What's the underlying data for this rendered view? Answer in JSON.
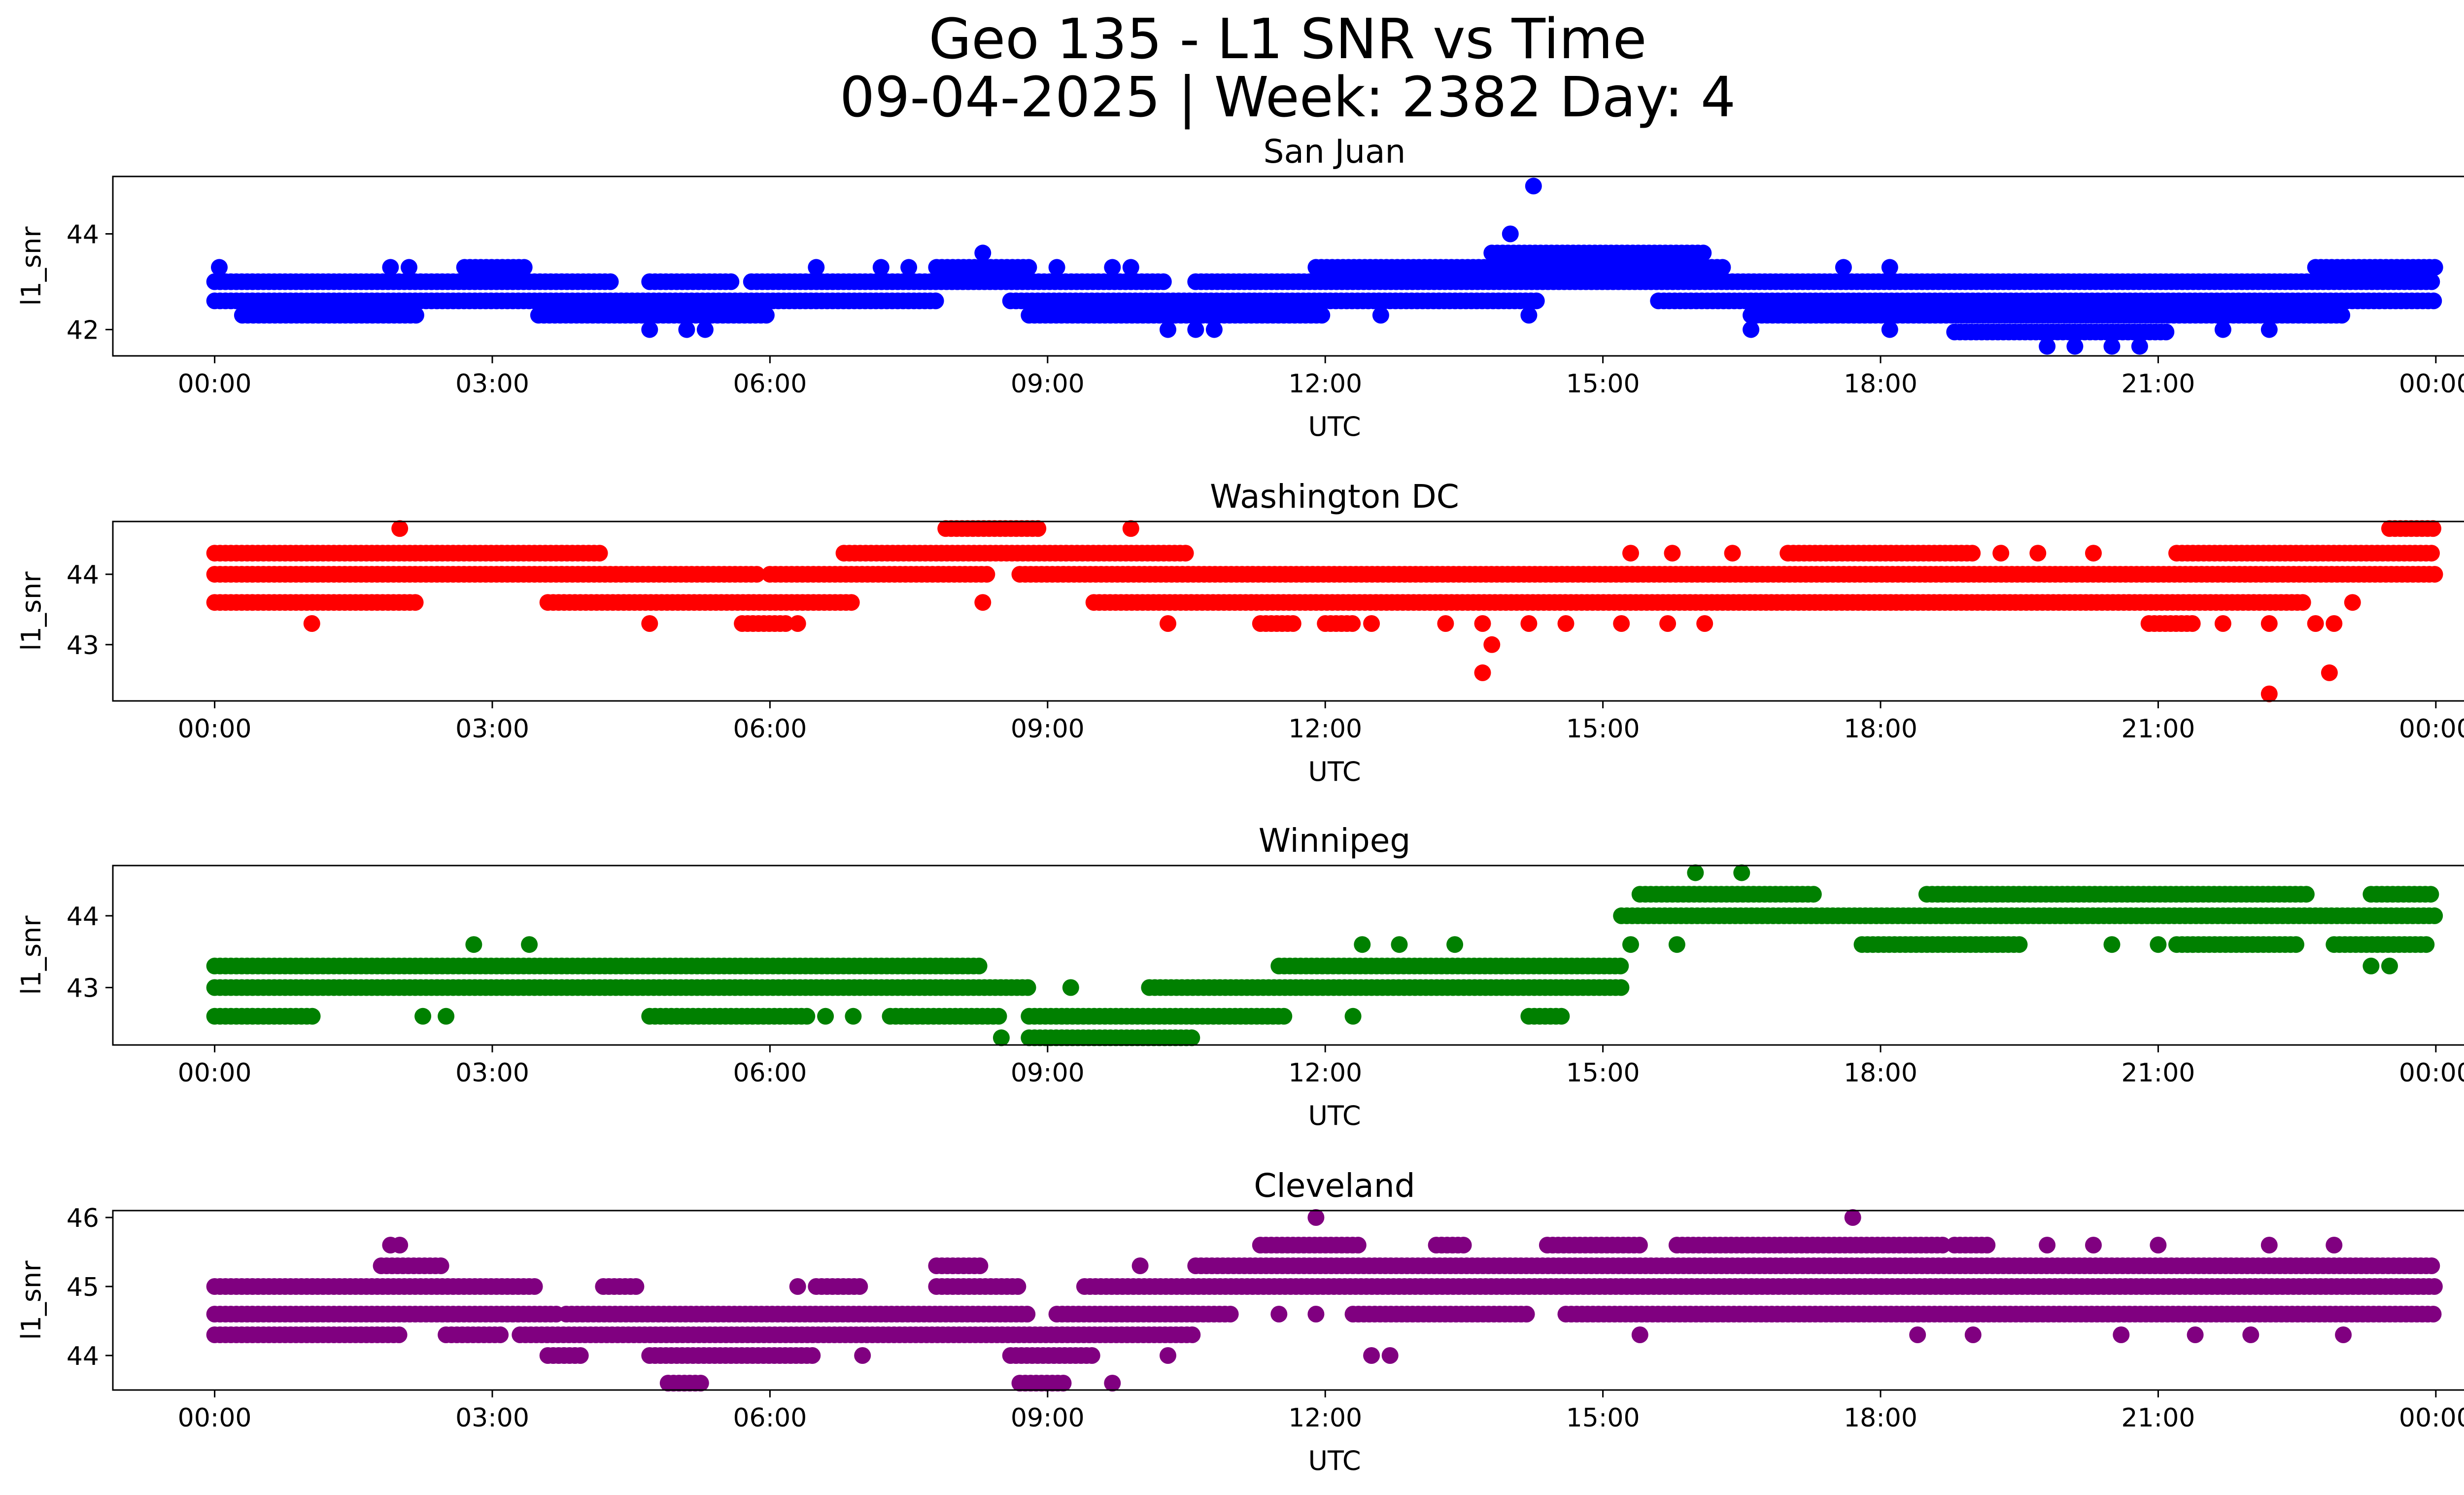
{
  "figure": {
    "title_line1": "Geo 135 - L1 SNR vs Time",
    "title_line2": "09-04-2025 | Week: 2382 Day: 4"
  },
  "chart_data": [
    {
      "type": "scatter",
      "title": "San Juan",
      "xlabel": "UTC",
      "ylabel": "l1_snr",
      "color": "#0000ff",
      "xlim_hours": [
        -1.1,
        25.3
      ],
      "ylim": [
        41.45,
        45.2
      ],
      "xticks": [
        "00:00",
        "03:00",
        "06:00",
        "09:00",
        "12:00",
        "15:00",
        "18:00",
        "21:00",
        "00:00"
      ],
      "yticks": [
        42,
        44
      ],
      "bands": [
        {
          "y": 43.0,
          "segments": [
            [
              0.0,
              4.3
            ],
            [
              4.7,
              5.6
            ],
            [
              5.8,
              10.3
            ],
            [
              10.6,
              24.0
            ]
          ]
        },
        {
          "y": 42.6,
          "segments": [
            [
              0.0,
              7.8
            ],
            [
              8.6,
              14.3
            ],
            [
              15.6,
              24.0
            ]
          ]
        },
        {
          "y": 42.3,
          "segments": [
            [
              0.3,
              2.2
            ],
            [
              3.5,
              6.0
            ],
            [
              8.8,
              12.0
            ],
            [
              16.6,
              23.0
            ]
          ]
        },
        {
          "y": 43.3,
          "segments": [
            [
              2.7,
              3.4
            ],
            [
              7.8,
              8.8
            ],
            [
              11.9,
              16.3
            ],
            [
              22.7,
              24.0
            ]
          ]
        },
        {
          "y": 43.6,
          "segments": [
            [
              13.8,
              16.1
            ]
          ]
        },
        {
          "y": 41.95,
          "segments": [
            [
              18.8,
              21.1
            ]
          ]
        }
      ],
      "points": [
        {
          "x": 0.05,
          "y": 43.3
        },
        {
          "x": 1.9,
          "y": 43.3
        },
        {
          "x": 2.1,
          "y": 43.3
        },
        {
          "x": 6.5,
          "y": 43.3
        },
        {
          "x": 7.2,
          "y": 43.3
        },
        {
          "x": 7.5,
          "y": 43.3
        },
        {
          "x": 9.1,
          "y": 43.3
        },
        {
          "x": 9.7,
          "y": 43.3
        },
        {
          "x": 9.9,
          "y": 43.3
        },
        {
          "x": 17.6,
          "y": 43.3
        },
        {
          "x": 18.1,
          "y": 43.3
        },
        {
          "x": 8.3,
          "y": 43.6
        },
        {
          "x": 14.0,
          "y": 44.0
        },
        {
          "x": 14.25,
          "y": 45.0
        },
        {
          "x": 4.7,
          "y": 42.0
        },
        {
          "x": 5.1,
          "y": 42.0
        },
        {
          "x": 5.3,
          "y": 42.0
        },
        {
          "x": 10.3,
          "y": 42.0
        },
        {
          "x": 10.6,
          "y": 42.0
        },
        {
          "x": 10.8,
          "y": 42.0
        },
        {
          "x": 16.6,
          "y": 42.0
        },
        {
          "x": 18.1,
          "y": 42.0
        },
        {
          "x": 21.7,
          "y": 42.0
        },
        {
          "x": 22.2,
          "y": 42.0
        },
        {
          "x": 19.8,
          "y": 41.65
        },
        {
          "x": 20.1,
          "y": 41.65
        },
        {
          "x": 20.5,
          "y": 41.65
        },
        {
          "x": 20.8,
          "y": 41.65
        },
        {
          "x": 14.2,
          "y": 42.3
        },
        {
          "x": 12.6,
          "y": 42.3
        }
      ]
    },
    {
      "type": "scatter",
      "title": "Washington DC",
      "xlabel": "UTC",
      "ylabel": "l1_snr",
      "color": "#ff0000",
      "xlim_hours": [
        -1.1,
        25.3
      ],
      "ylim": [
        42.2,
        44.75
      ],
      "xticks": [
        "00:00",
        "03:00",
        "06:00",
        "09:00",
        "12:00",
        "15:00",
        "18:00",
        "21:00",
        "00:00"
      ],
      "yticks": [
        43,
        44
      ],
      "bands": [
        {
          "y": 44.3,
          "segments": [
            [
              0.0,
              4.2
            ],
            [
              6.8,
              10.5
            ],
            [
              17.0,
              19.0
            ],
            [
              21.2,
              24.0
            ]
          ]
        },
        {
          "y": 44.0,
          "segments": [
            [
              0.0,
              5.9
            ],
            [
              6.0,
              8.4
            ],
            [
              8.7,
              24.0
            ]
          ]
        },
        {
          "y": 43.6,
          "segments": [
            [
              0.0,
              2.2
            ],
            [
              3.6,
              6.9
            ],
            [
              9.5,
              22.6
            ]
          ]
        },
        {
          "y": 43.3,
          "segments": [
            [
              5.7,
              6.2
            ],
            [
              11.3,
              11.7
            ],
            [
              12.0,
              12.3
            ],
            [
              20.9,
              21.4
            ]
          ]
        },
        {
          "y": 44.65,
          "segments": [
            [
              7.9,
              8.9
            ],
            [
              23.5,
              24.0
            ]
          ]
        }
      ],
      "points": [
        {
          "x": 2.0,
          "y": 44.65
        },
        {
          "x": 9.9,
          "y": 44.65
        },
        {
          "x": 1.05,
          "y": 43.3
        },
        {
          "x": 4.7,
          "y": 43.3
        },
        {
          "x": 6.3,
          "y": 43.3
        },
        {
          "x": 10.3,
          "y": 43.3
        },
        {
          "x": 12.5,
          "y": 43.3
        },
        {
          "x": 13.3,
          "y": 43.3
        },
        {
          "x": 13.7,
          "y": 43.3
        },
        {
          "x": 14.2,
          "y": 43.3
        },
        {
          "x": 14.6,
          "y": 43.3
        },
        {
          "x": 15.2,
          "y": 43.3
        },
        {
          "x": 15.7,
          "y": 43.3
        },
        {
          "x": 16.1,
          "y": 43.3
        },
        {
          "x": 21.7,
          "y": 43.3
        },
        {
          "x": 22.2,
          "y": 43.3
        },
        {
          "x": 22.7,
          "y": 43.3
        },
        {
          "x": 22.9,
          "y": 43.3
        },
        {
          "x": 8.3,
          "y": 43.6
        },
        {
          "x": 23.1,
          "y": 43.6
        },
        {
          "x": 13.8,
          "y": 43.0
        },
        {
          "x": 13.7,
          "y": 42.6
        },
        {
          "x": 22.2,
          "y": 42.3
        },
        {
          "x": 22.85,
          "y": 42.6
        },
        {
          "x": 15.3,
          "y": 44.3
        },
        {
          "x": 15.75,
          "y": 44.3
        },
        {
          "x": 16.4,
          "y": 44.3
        },
        {
          "x": 19.3,
          "y": 44.3
        },
        {
          "x": 19.7,
          "y": 44.3
        },
        {
          "x": 20.3,
          "y": 44.3
        }
      ]
    },
    {
      "type": "scatter",
      "title": "Winnipeg",
      "xlabel": "UTC",
      "ylabel": "l1_snr",
      "color": "#008000",
      "xlim_hours": [
        -1.1,
        25.3
      ],
      "ylim": [
        42.2,
        44.7
      ],
      "xticks": [
        "00:00",
        "03:00",
        "06:00",
        "09:00",
        "12:00",
        "15:00",
        "18:00",
        "21:00",
        "00:00"
      ],
      "yticks": [
        43,
        44
      ],
      "bands": [
        {
          "y": 43.3,
          "segments": [
            [
              0.0,
              8.3
            ],
            [
              11.5,
              15.2
            ]
          ]
        },
        {
          "y": 43.0,
          "segments": [
            [
              0.0,
              8.8
            ],
            [
              10.1,
              15.2
            ]
          ]
        },
        {
          "y": 42.6,
          "segments": [
            [
              0.0,
              1.1
            ],
            [
              4.7,
              6.4
            ],
            [
              7.3,
              8.5
            ],
            [
              8.8,
              11.6
            ],
            [
              14.2,
              14.6
            ]
          ]
        },
        {
          "y": 42.3,
          "segments": [
            [
              8.8,
              10.6
            ]
          ]
        },
        {
          "y": 44.3,
          "segments": [
            [
              15.4,
              17.3
            ],
            [
              18.5,
              22.6
            ],
            [
              23.3,
              24.0
            ]
          ]
        },
        {
          "y": 44.0,
          "segments": [
            [
              15.2,
              24.0
            ]
          ]
        },
        {
          "y": 43.6,
          "segments": [
            [
              17.8,
              19.5
            ],
            [
              21.2,
              22.5
            ],
            [
              22.9,
              23.9
            ]
          ]
        }
      ],
      "points": [
        {
          "x": 2.8,
          "y": 43.6
        },
        {
          "x": 3.4,
          "y": 43.6
        },
        {
          "x": 12.4,
          "y": 43.6
        },
        {
          "x": 12.8,
          "y": 43.6
        },
        {
          "x": 13.4,
          "y": 43.6
        },
        {
          "x": 15.3,
          "y": 43.6
        },
        {
          "x": 15.8,
          "y": 43.6
        },
        {
          "x": 16.0,
          "y": 44.6
        },
        {
          "x": 16.5,
          "y": 44.6
        },
        {
          "x": 23.3,
          "y": 43.3
        },
        {
          "x": 23.5,
          "y": 43.3
        },
        {
          "x": 2.25,
          "y": 42.6
        },
        {
          "x": 2.5,
          "y": 42.6
        },
        {
          "x": 6.6,
          "y": 42.6
        },
        {
          "x": 6.9,
          "y": 42.6
        },
        {
          "x": 12.3,
          "y": 42.6
        },
        {
          "x": 8.5,
          "y": 42.3
        },
        {
          "x": 9.25,
          "y": 43.0
        },
        {
          "x": 21.0,
          "y": 43.6
        },
        {
          "x": 20.5,
          "y": 43.6
        }
      ]
    },
    {
      "type": "scatter",
      "title": "Cleveland",
      "xlabel": "UTC",
      "ylabel": "l1_snr",
      "color": "#800080",
      "xlim_hours": [
        -1.1,
        25.3
      ],
      "ylim": [
        43.5,
        46.1
      ],
      "xticks": [
        "00:00",
        "03:00",
        "06:00",
        "09:00",
        "12:00",
        "15:00",
        "18:00",
        "21:00",
        "00:00"
      ],
      "yticks": [
        44,
        45,
        46
      ],
      "bands": [
        {
          "y": 45.0,
          "segments": [
            [
              0.0,
              3.5
            ],
            [
              4.2,
              4.6
            ],
            [
              6.5,
              7.0
            ],
            [
              7.8,
              8.7
            ],
            [
              9.4,
              24.0
            ]
          ]
        },
        {
          "y": 44.6,
          "segments": [
            [
              0.0,
              3.7
            ],
            [
              3.8,
              8.8
            ],
            [
              9.1,
              11.0
            ],
            [
              12.3,
              14.2
            ],
            [
              14.6,
              24.0
            ]
          ]
        },
        {
          "y": 44.3,
          "segments": [
            [
              0.0,
              2.0
            ],
            [
              2.5,
              3.1
            ],
            [
              3.3,
              10.6
            ]
          ]
        },
        {
          "y": 44.0,
          "segments": [
            [
              3.6,
              4.0
            ],
            [
              4.7,
              6.5
            ],
            [
              8.6,
              9.5
            ]
          ]
        },
        {
          "y": 43.6,
          "segments": [
            [
              4.9,
              5.3
            ],
            [
              8.7,
              9.2
            ]
          ]
        },
        {
          "y": 45.3,
          "segments": [
            [
              1.8,
              2.5
            ],
            [
              7.8,
              8.3
            ],
            [
              10.6,
              24.0
            ]
          ]
        },
        {
          "y": 45.6,
          "segments": [
            [
              11.3,
              12.4
            ],
            [
              13.2,
              13.5
            ],
            [
              14.4,
              15.4
            ],
            [
              15.8,
              18.7
            ],
            [
              18.8,
              19.2
            ]
          ]
        }
      ],
      "points": [
        {
          "x": 1.9,
          "y": 45.6
        },
        {
          "x": 2.0,
          "y": 45.6
        },
        {
          "x": 11.9,
          "y": 46.0
        },
        {
          "x": 17.7,
          "y": 46.0
        },
        {
          "x": 9.7,
          "y": 43.6
        },
        {
          "x": 10.0,
          "y": 45.3
        },
        {
          "x": 10.3,
          "y": 44.0
        },
        {
          "x": 7.0,
          "y": 44.0
        },
        {
          "x": 12.5,
          "y": 44.0
        },
        {
          "x": 12.7,
          "y": 44.0
        },
        {
          "x": 11.5,
          "y": 44.6
        },
        {
          "x": 11.9,
          "y": 44.6
        },
        {
          "x": 19.8,
          "y": 45.6
        },
        {
          "x": 20.3,
          "y": 45.6
        },
        {
          "x": 21.0,
          "y": 45.6
        },
        {
          "x": 22.2,
          "y": 45.6
        },
        {
          "x": 22.9,
          "y": 45.6
        },
        {
          "x": 23.0,
          "y": 44.3
        },
        {
          "x": 15.4,
          "y": 44.3
        },
        {
          "x": 18.4,
          "y": 44.3
        },
        {
          "x": 19.0,
          "y": 44.3
        },
        {
          "x": 20.6,
          "y": 44.3
        },
        {
          "x": 21.4,
          "y": 44.3
        },
        {
          "x": 22.0,
          "y": 44.3
        },
        {
          "x": 6.3,
          "y": 45.0
        }
      ]
    }
  ]
}
